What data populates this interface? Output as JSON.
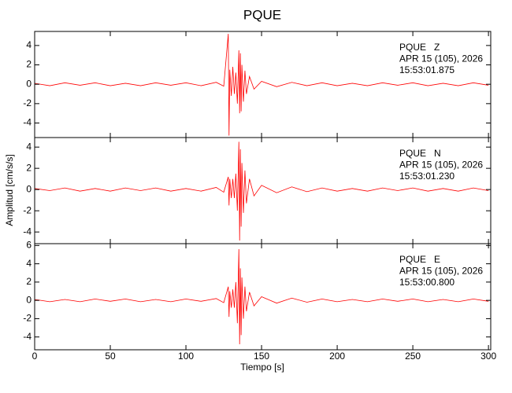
{
  "chart_data": {
    "type": "line",
    "title": "PQUE",
    "xlabel": "Tiempo [s]",
    "ylabel": "Amplitud [cm/s/s]",
    "color": "#ff0000",
    "xlim": [
      0,
      301.5
    ],
    "xticks": [
      0,
      50,
      100,
      150,
      200,
      250,
      300
    ],
    "panels": [
      {
        "annotation": [
          "PQUE   Z",
          "APR 15 (105), 2026",
          "15:53:01.875"
        ],
        "ylim": [
          -5.5,
          5.45
        ],
        "yticks": [
          -4,
          -2,
          0,
          2,
          4
        ],
        "x": [
          0,
          10,
          20,
          30,
          40,
          50,
          60,
          70,
          80,
          90,
          100,
          110,
          120,
          125,
          128,
          128.5,
          129,
          130,
          131,
          132,
          133,
          134,
          135,
          135.5,
          136,
          136.5,
          137,
          138,
          139,
          140,
          142,
          145,
          150,
          160,
          170,
          180,
          190,
          200,
          210,
          220,
          230,
          240,
          250,
          260,
          270,
          280,
          290,
          300
        ],
        "values": [
          0.1,
          -0.15,
          0.15,
          -0.1,
          0.15,
          -0.15,
          0.1,
          -0.15,
          0.15,
          -0.1,
          0.15,
          -0.15,
          0.2,
          -0.2,
          5.2,
          -5.3,
          1.5,
          -1.2,
          1.8,
          -1.0,
          1.2,
          -2.0,
          3.5,
          -3.0,
          3.2,
          -2.8,
          2.0,
          -1.8,
          1.4,
          -1.0,
          0.8,
          -0.5,
          0.3,
          -0.25,
          0.2,
          -0.15,
          0.15,
          -0.15,
          0.1,
          -0.15,
          0.15,
          -0.1,
          0.15,
          -0.15,
          0.1,
          -0.15,
          0.15,
          -0.1
        ]
      },
      {
        "annotation": [
          "PQUE   N",
          "APR 15 (105), 2026",
          "15:53:01.230"
        ],
        "ylim": [
          -5.1,
          4.9
        ],
        "yticks": [
          -4,
          -2,
          0,
          2,
          4
        ],
        "x": [
          0,
          10,
          20,
          30,
          40,
          50,
          60,
          70,
          80,
          90,
          100,
          110,
          120,
          125,
          128,
          128.5,
          129,
          130,
          131,
          132,
          133,
          134,
          135,
          135.5,
          136,
          136.5,
          137,
          138,
          139,
          140,
          142,
          145,
          150,
          160,
          170,
          180,
          190,
          200,
          210,
          220,
          230,
          240,
          250,
          260,
          270,
          280,
          290,
          300
        ],
        "values": [
          0.1,
          -0.1,
          0.15,
          -0.15,
          0.1,
          -0.15,
          0.15,
          -0.1,
          0.15,
          -0.15,
          0.1,
          -0.15,
          0.2,
          -0.25,
          1.2,
          -1.5,
          1.0,
          -0.8,
          1.0,
          -0.8,
          1.5,
          -2.0,
          4.5,
          -4.8,
          3.8,
          -3.5,
          2.5,
          -2.2,
          1.8,
          -1.3,
          1.0,
          -0.6,
          0.4,
          -0.3,
          0.25,
          -0.2,
          0.15,
          -0.15,
          0.1,
          -0.15,
          0.15,
          -0.1,
          0.15,
          -0.15,
          0.1,
          -0.15,
          0.15,
          -0.1
        ]
      },
      {
        "annotation": [
          "PQUE   E",
          "APR 15 (105), 2026",
          "15:53:00.800"
        ],
        "ylim": [
          -5.4,
          6.2
        ],
        "yticks": [
          -4,
          -2,
          0,
          2,
          4,
          6
        ],
        "x": [
          0,
          10,
          20,
          30,
          40,
          50,
          60,
          70,
          80,
          90,
          100,
          110,
          120,
          125,
          128,
          128.5,
          129,
          130,
          131,
          132,
          133,
          134,
          135,
          135.5,
          136,
          136.5,
          137,
          138,
          139,
          140,
          142,
          145,
          150,
          160,
          170,
          180,
          190,
          200,
          210,
          220,
          230,
          240,
          250,
          260,
          270,
          280,
          290,
          300
        ],
        "values": [
          0.1,
          -0.15,
          0.1,
          -0.15,
          0.15,
          -0.1,
          0.15,
          -0.15,
          0.1,
          -0.15,
          0.15,
          -0.1,
          0.2,
          -0.25,
          1.5,
          -1.8,
          1.0,
          -0.8,
          1.2,
          -0.8,
          2.0,
          -2.5,
          5.6,
          -4.8,
          3.5,
          -3.8,
          2.5,
          -2.0,
          1.5,
          -1.2,
          0.9,
          -0.6,
          0.4,
          -0.3,
          0.25,
          -0.2,
          0.15,
          -0.15,
          0.1,
          -0.15,
          0.15,
          -0.1,
          0.15,
          -0.15,
          0.1,
          -0.15,
          0.15,
          -0.1
        ]
      }
    ]
  }
}
